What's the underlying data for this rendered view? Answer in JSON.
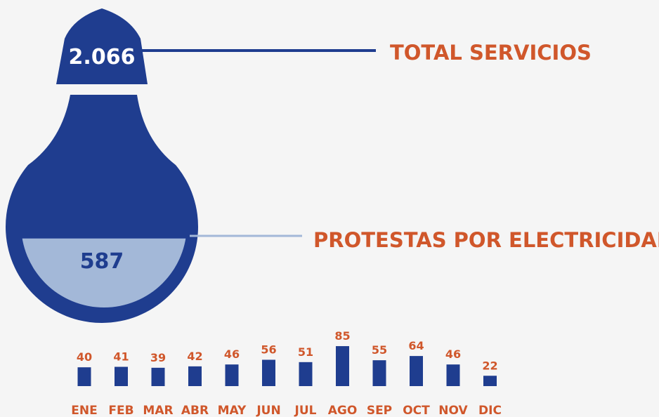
{
  "bulb": {
    "total": {
      "value": 2066,
      "label": "2.066"
    },
    "total_title": "TOTAL SERVICIOS",
    "part": 587,
    "part_title": "PROTESTAS POR ELECTRICIDAD"
  },
  "chart_data": {
    "type": "bar",
    "categories": [
      "ENE",
      "FEB",
      "MAR",
      "ABR",
      "MAY",
      "JUN",
      "JUL",
      "AGO",
      "SEP",
      "OCT",
      "NOV",
      "DIC"
    ],
    "values": [
      40,
      41,
      39,
      42,
      46,
      56,
      51,
      85,
      55,
      64,
      46,
      22
    ],
    "color": "#1f3d8f",
    "label_color": "#d0572b"
  }
}
